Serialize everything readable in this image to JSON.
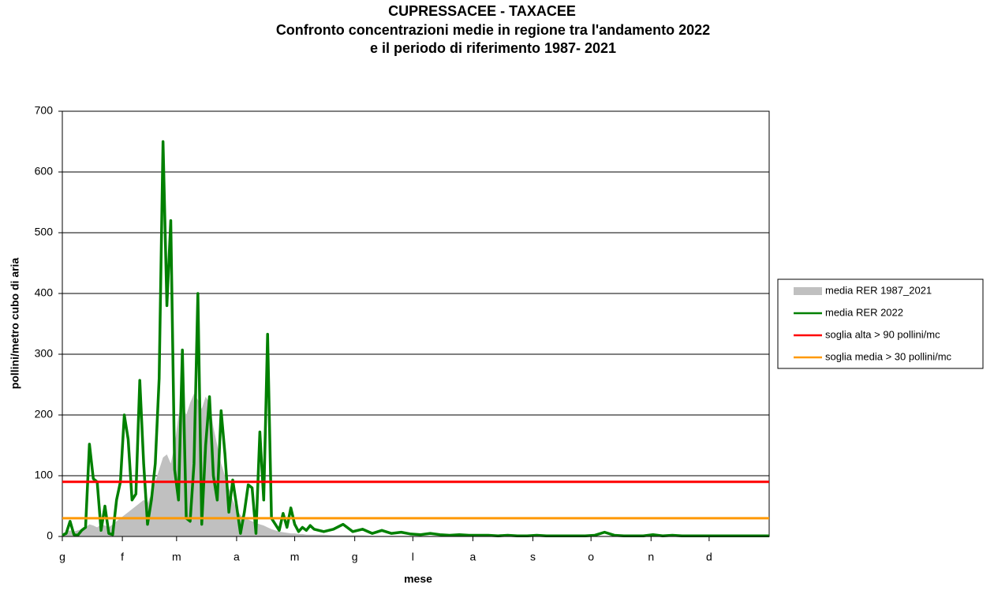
{
  "chart_data": {
    "type": "line",
    "title": "CUPRESSACEE - TAXACEE",
    "subtitle": [
      "Confronto concentrazioni medie in regione tra l'andamento 2022",
      "e il periodo di riferimento 1987- 2021"
    ],
    "xlabel": "mese",
    "ylabel": "pollini/metro cubo di aria",
    "x": [
      0,
      2,
      4,
      6,
      8,
      10,
      12,
      14,
      16,
      18,
      20,
      22,
      24,
      26,
      28,
      30,
      32,
      34,
      36,
      38,
      40,
      42,
      44,
      46,
      48,
      50,
      52,
      54,
      56,
      58,
      60,
      62,
      64,
      66,
      68,
      70,
      72,
      74,
      76,
      78,
      80,
      82,
      84,
      86,
      88,
      90,
      92,
      94,
      96,
      98,
      100,
      102,
      104,
      106,
      108,
      110,
      112,
      114,
      116,
      118,
      120,
      122,
      124,
      126,
      128,
      130,
      135,
      140,
      145,
      150,
      155,
      160,
      165,
      170,
      175,
      180,
      185,
      190,
      195,
      200,
      205,
      210,
      215,
      220,
      225,
      230,
      235,
      240,
      245,
      250,
      255,
      260,
      265,
      270,
      275,
      280,
      285,
      290,
      295,
      300,
      305,
      310,
      315,
      320,
      325,
      330,
      335,
      340,
      345,
      350,
      355,
      360,
      365
    ],
    "xlim": [
      0,
      365
    ],
    "xticks": [
      {
        "value": 0,
        "label": "g"
      },
      {
        "value": 31,
        "label": "f"
      },
      {
        "value": 59,
        "label": "m"
      },
      {
        "value": 90,
        "label": "a"
      },
      {
        "value": 120,
        "label": "m"
      },
      {
        "value": 151,
        "label": "g"
      },
      {
        "value": 181,
        "label": "l"
      },
      {
        "value": 212,
        "label": "a"
      },
      {
        "value": 243,
        "label": "s"
      },
      {
        "value": 273,
        "label": "o"
      },
      {
        "value": 304,
        "label": "n"
      },
      {
        "value": 334,
        "label": "d"
      }
    ],
    "ylim": [
      0,
      700
    ],
    "yticks": [
      0,
      100,
      200,
      300,
      400,
      500,
      600,
      700
    ],
    "grid": true,
    "legend": "right",
    "series": [
      {
        "name": "media RER 1987_2021",
        "color": "#c0c0c0",
        "style": "area",
        "values": [
          5,
          8,
          10,
          8,
          10,
          12,
          15,
          20,
          18,
          15,
          20,
          18,
          15,
          20,
          25,
          30,
          35,
          40,
          45,
          50,
          55,
          60,
          55,
          70,
          90,
          110,
          130,
          135,
          120,
          150,
          200,
          215,
          200,
          220,
          235,
          225,
          210,
          230,
          220,
          180,
          150,
          120,
          100,
          80,
          60,
          45,
          35,
          30,
          28,
          25,
          22,
          20,
          18,
          15,
          12,
          10,
          8,
          7,
          6,
          5,
          5,
          4,
          4,
          3,
          3,
          3,
          3,
          2,
          2,
          2,
          2,
          1,
          1,
          1,
          1,
          1,
          1,
          1,
          1,
          1,
          1,
          1,
          1,
          1,
          1,
          1,
          1,
          1,
          1,
          1,
          1,
          1,
          1,
          1,
          1,
          1,
          1,
          1,
          1,
          1,
          1,
          1,
          1,
          1,
          1,
          1,
          1,
          1,
          1,
          1,
          1,
          1,
          1
        ]
      },
      {
        "name": "media RER 2022",
        "color": "#008000",
        "style": "line",
        "values": [
          2,
          5,
          25,
          3,
          2,
          10,
          15,
          152,
          95,
          90,
          10,
          50,
          5,
          3,
          60,
          90,
          200,
          160,
          60,
          70,
          257,
          120,
          20,
          60,
          120,
          260,
          650,
          380,
          520,
          110,
          60,
          307,
          30,
          25,
          120,
          400,
          20,
          150,
          230,
          100,
          60,
          207,
          135,
          40,
          93,
          50,
          5,
          40,
          85,
          80,
          5,
          172,
          60,
          333,
          30,
          20,
          10,
          38,
          15,
          47,
          20,
          8,
          15,
          10,
          18,
          12,
          8,
          12,
          20,
          8,
          12,
          5,
          10,
          5,
          7,
          4,
          3,
          5,
          3,
          2,
          3,
          2,
          2,
          2,
          1,
          2,
          1,
          1,
          2,
          1,
          1,
          1,
          1,
          1,
          2,
          7,
          2,
          1,
          1,
          1,
          3,
          1,
          2,
          1,
          1,
          1,
          1,
          1,
          1,
          1,
          1,
          1,
          1
        ]
      }
    ],
    "thresholds": [
      {
        "name": "soglia alta > 90 pollini/mc",
        "value": 90,
        "color": "#ff0000"
      },
      {
        "name": "soglia media > 30 pollini/mc",
        "value": 30,
        "color": "#ff9900"
      }
    ]
  }
}
